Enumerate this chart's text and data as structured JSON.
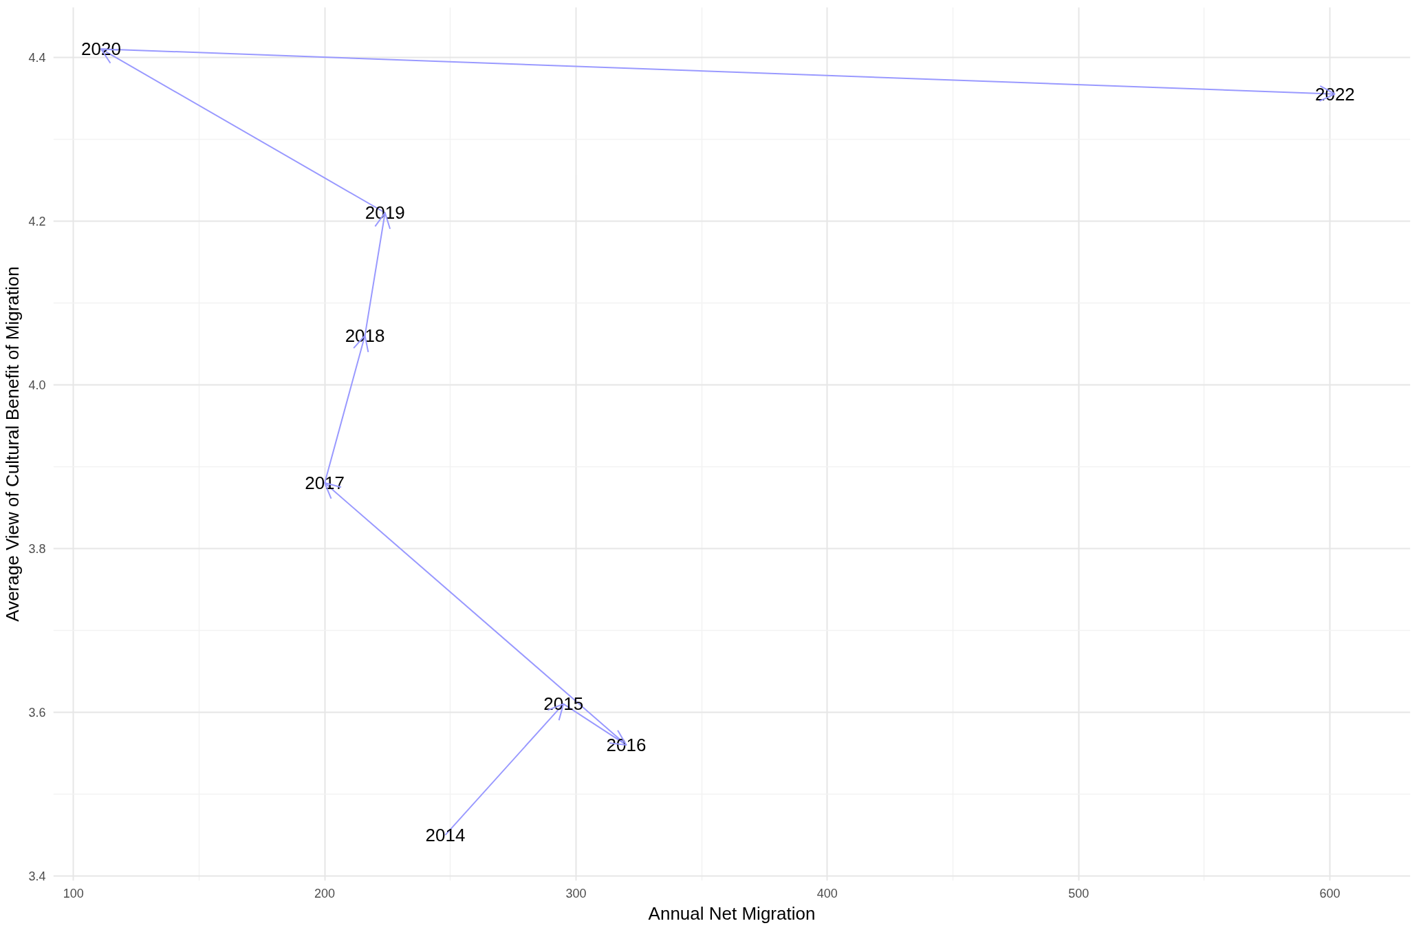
{
  "chart_data": {
    "type": "line",
    "xlabel": "Annual Net Migration",
    "ylabel": "Average View of Cultural Benefit of Migration",
    "x": [
      248,
      295,
      320,
      200,
      216,
      224,
      111,
      602
    ],
    "series": [
      {
        "color": "#9999ff",
        "values": [
          3.45,
          3.61,
          3.56,
          3.88,
          4.06,
          4.21,
          4.41,
          4.355
        ]
      }
    ],
    "annotations": [
      {
        "text": "2014",
        "x": 248,
        "y": 3.45
      },
      {
        "text": "2015",
        "x": 295,
        "y": 3.61
      },
      {
        "text": "2016",
        "x": 320,
        "y": 3.56
      },
      {
        "text": "2017",
        "x": 200,
        "y": 3.88
      },
      {
        "text": "2018",
        "x": 216,
        "y": 4.06
      },
      {
        "text": "2019",
        "x": 224,
        "y": 4.21
      },
      {
        "text": "2020",
        "x": 111,
        "y": 4.41
      },
      {
        "text": "2022",
        "x": 602,
        "y": 4.355
      }
    ],
    "xlim": [
      92,
      632
    ],
    "ylim": [
      3.394,
      4.461
    ],
    "xticks": [
      100,
      {
        "value": 150,
        "label": null
      },
      200,
      {
        "value": 250,
        "label": null
      },
      300,
      {
        "value": 350,
        "label": null
      },
      400,
      {
        "value": 450,
        "label": null
      },
      500,
      {
        "value": 550,
        "label": null
      },
      600
    ],
    "yticks": [
      3.4,
      {
        "value": 3.5,
        "label": null
      },
      3.6,
      {
        "value": 3.7,
        "label": null
      },
      3.8,
      {
        "value": 3.9,
        "label": null
      },
      {
        "value": 4.0,
        "label": "4.0"
      },
      {
        "value": 4.1,
        "label": null
      },
      4.2,
      {
        "value": 4.3,
        "label": null
      },
      4.4
    ],
    "grid": true,
    "marker": "none",
    "line_style": "solid"
  }
}
